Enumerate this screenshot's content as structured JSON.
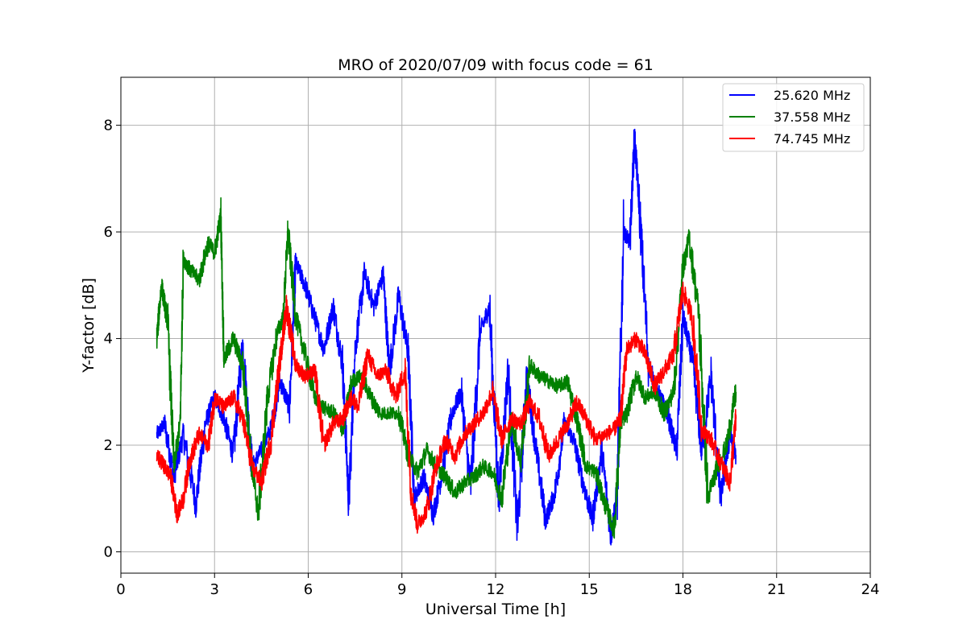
{
  "chart_data": {
    "type": "line",
    "title": "MRO of 2020/07/09 with focus code = 61",
    "xlabel": "Universal Time [h]",
    "ylabel": "Y-factor [dB]",
    "xlim": [
      0,
      24
    ],
    "ylim": [
      -0.4,
      8.9
    ],
    "xticks": [
      0,
      3,
      6,
      9,
      12,
      15,
      18,
      21,
      24
    ],
    "yticks": [
      0,
      2,
      4,
      6,
      8
    ],
    "grid": true,
    "legend_position": "top-right",
    "series": [
      {
        "name": "25.620 MHz",
        "color": "#0000ff",
        "x": [
          1.15,
          1.4,
          1.7,
          2.0,
          2.4,
          2.7,
          3.0,
          3.3,
          3.6,
          3.9,
          4.2,
          4.5,
          4.8,
          5.1,
          5.4,
          5.6,
          5.9,
          6.2,
          6.5,
          6.8,
          7.1,
          7.3,
          7.5,
          7.8,
          8.1,
          8.4,
          8.6,
          8.9,
          9.2,
          9.4,
          9.7,
          10.0,
          10.3,
          10.6,
          10.9,
          11.2,
          11.5,
          11.8,
          12.1,
          12.4,
          12.7,
          13.0,
          13.3,
          13.6,
          13.9,
          14.2,
          14.5,
          14.8,
          15.1,
          15.4,
          15.7,
          15.9,
          16.1,
          16.3,
          16.45,
          16.6,
          16.9,
          17.2,
          17.5,
          17.8,
          18.0,
          18.3,
          18.6,
          18.9,
          19.2,
          19.5,
          19.7
        ],
        "y": [
          2.2,
          2.4,
          1.4,
          2.2,
          0.9,
          2.4,
          2.9,
          2.5,
          1.8,
          3.9,
          1.6,
          1.9,
          2.3,
          3.2,
          2.7,
          5.4,
          5.0,
          4.4,
          3.8,
          4.6,
          3.5,
          0.9,
          3.8,
          5.2,
          4.6,
          5.2,
          3.4,
          4.8,
          3.7,
          1.0,
          1.4,
          0.7,
          1.5,
          2.6,
          3.0,
          1.2,
          4.1,
          4.6,
          1.0,
          3.4,
          0.4,
          3.3,
          1.9,
          0.6,
          1.1,
          2.4,
          2.1,
          1.3,
          0.6,
          1.9,
          0.3,
          1.2,
          6.0,
          5.8,
          7.8,
          6.5,
          3.5,
          3.0,
          2.6,
          1.9,
          4.4,
          3.6,
          1.9,
          3.3,
          1.0,
          2.2,
          1.8
        ]
      },
      {
        "name": "37.558 MHz",
        "color": "#008000",
        "x": [
          1.15,
          1.3,
          1.5,
          1.7,
          1.9,
          2.0,
          2.2,
          2.5,
          2.8,
          3.0,
          3.2,
          3.3,
          3.6,
          3.9,
          4.2,
          4.4,
          4.7,
          5.0,
          5.2,
          5.35,
          5.6,
          5.9,
          6.2,
          6.5,
          6.8,
          7.1,
          7.4,
          7.7,
          8.0,
          8.3,
          8.6,
          8.9,
          9.2,
          9.5,
          9.8,
          10.1,
          10.4,
          10.7,
          11.0,
          11.3,
          11.6,
          11.9,
          12.2,
          12.5,
          12.8,
          13.1,
          13.4,
          13.7,
          14.0,
          14.3,
          14.6,
          14.9,
          15.2,
          15.5,
          15.8,
          16.0,
          16.2,
          16.5,
          16.8,
          17.1,
          17.4,
          17.7,
          18.0,
          18.2,
          18.5,
          18.8,
          19.1,
          19.4,
          19.7
        ],
        "y": [
          4.0,
          5.0,
          4.3,
          1.6,
          2.4,
          5.5,
          5.3,
          5.1,
          5.8,
          5.6,
          6.3,
          3.6,
          4.0,
          3.5,
          1.6,
          0.7,
          2.9,
          4.1,
          4.4,
          6.0,
          4.4,
          3.7,
          2.9,
          2.7,
          2.6,
          2.3,
          3.2,
          3.3,
          2.9,
          2.6,
          2.6,
          2.6,
          1.8,
          1.5,
          1.9,
          1.6,
          1.4,
          1.1,
          1.3,
          1.4,
          1.6,
          1.5,
          1.0,
          2.5,
          1.7,
          3.5,
          3.3,
          3.2,
          3.1,
          3.2,
          2.5,
          1.6,
          1.5,
          0.9,
          0.4,
          2.4,
          2.6,
          3.3,
          2.9,
          3.0,
          2.6,
          3.0,
          5.3,
          5.9,
          4.5,
          1.0,
          1.6,
          2.0,
          3.0
        ]
      },
      {
        "name": "74.745 MHz",
        "color": "#ff0000",
        "x": [
          1.15,
          1.4,
          1.6,
          1.8,
          2.0,
          2.2,
          2.5,
          2.8,
          3.0,
          3.3,
          3.6,
          3.9,
          4.2,
          4.5,
          4.8,
          5.1,
          5.3,
          5.6,
          5.9,
          6.2,
          6.5,
          6.8,
          7.1,
          7.4,
          7.6,
          7.9,
          8.2,
          8.5,
          8.8,
          9.1,
          9.3,
          9.5,
          9.8,
          10.1,
          10.4,
          10.7,
          11.0,
          11.3,
          11.6,
          11.9,
          12.2,
          12.5,
          12.8,
          13.1,
          13.4,
          13.7,
          14.0,
          14.3,
          14.6,
          14.9,
          15.2,
          15.5,
          15.8,
          16.0,
          16.2,
          16.5,
          16.8,
          17.1,
          17.4,
          17.7,
          18.0,
          18.3,
          18.6,
          18.9,
          19.2,
          19.5,
          19.7
        ],
        "y": [
          1.8,
          1.6,
          1.4,
          0.7,
          1.0,
          1.7,
          2.2,
          2.0,
          2.9,
          2.7,
          2.9,
          2.5,
          1.6,
          1.3,
          2.1,
          3.6,
          4.6,
          3.5,
          3.3,
          3.4,
          2.0,
          2.4,
          2.5,
          2.9,
          2.7,
          3.7,
          3.3,
          3.4,
          2.9,
          3.4,
          1.1,
          0.5,
          0.8,
          1.6,
          2.1,
          1.8,
          2.2,
          2.4,
          2.6,
          3.0,
          2.1,
          2.5,
          2.4,
          2.8,
          2.5,
          1.8,
          2.1,
          2.4,
          2.8,
          2.5,
          2.1,
          2.2,
          2.3,
          2.5,
          3.8,
          4.0,
          3.7,
          3.1,
          3.4,
          3.7,
          4.9,
          4.4,
          2.3,
          2.1,
          1.7,
          1.3,
          2.5
        ]
      }
    ]
  }
}
